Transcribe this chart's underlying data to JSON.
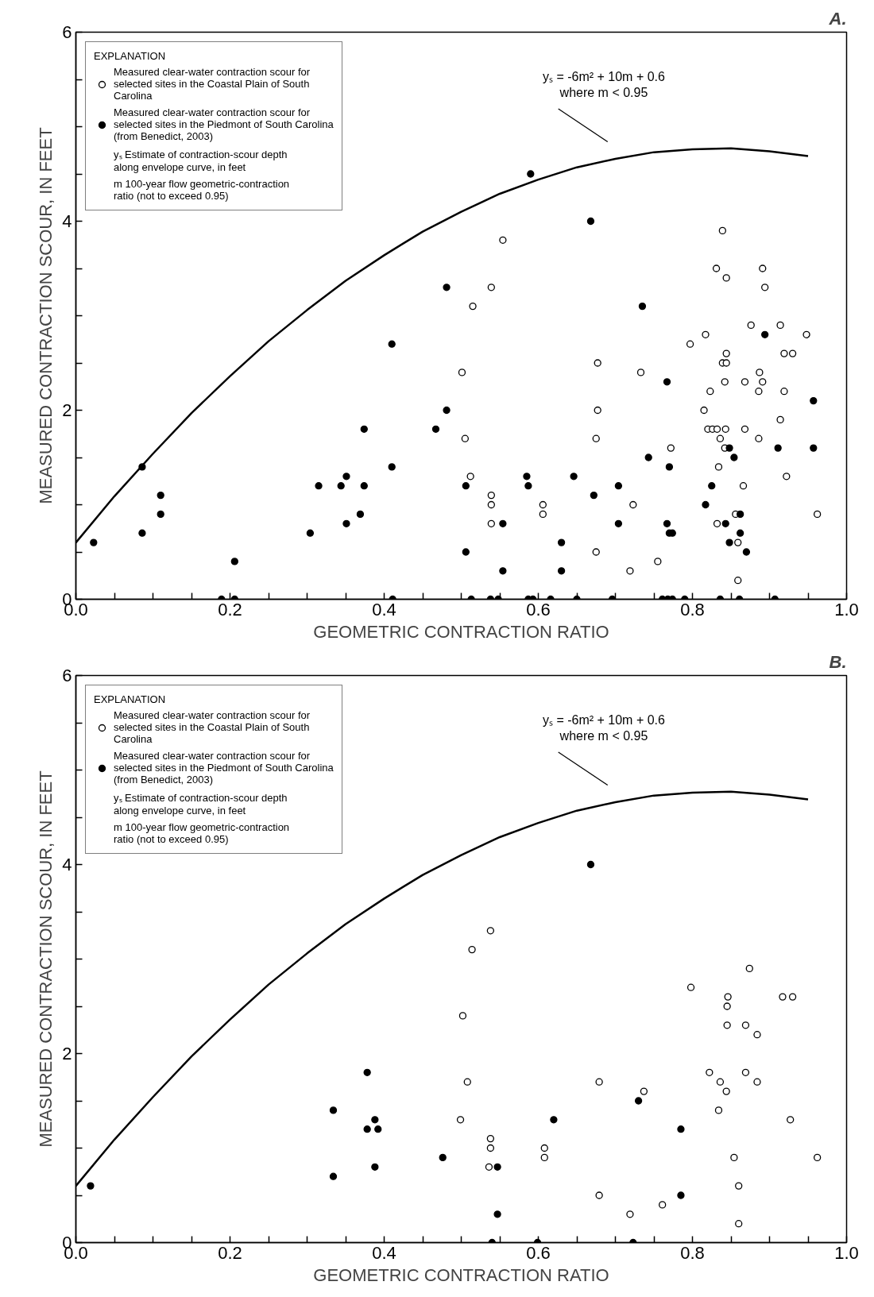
{
  "chart_data": [
    {
      "type": "scatter",
      "title": "A.",
      "xlabel": "GEOMETRIC CONTRACTION RATIO",
      "ylabel": "MEASURED CONTRACTION SCOUR, IN FEET",
      "legend_title": "EXPLANATION",
      "legend": "top left",
      "marker": "circle",
      "xlim": [
        0,
        1
      ],
      "ylim": [
        0,
        6
      ],
      "xticks": [
        {
          "value": 0,
          "label": "0.0"
        },
        {
          "value": 0.05,
          "label": null
        },
        {
          "value": 0.1,
          "label": null
        },
        {
          "value": 0.15,
          "label": null
        },
        0.2,
        {
          "value": 0.25,
          "label": null
        },
        {
          "value": 0.3,
          "label": null
        },
        {
          "value": 0.35,
          "label": null
        },
        0.4,
        {
          "value": 0.45,
          "label": null
        },
        {
          "value": 0.5,
          "label": null
        },
        {
          "value": 0.55,
          "label": null
        },
        0.6,
        {
          "value": 0.65,
          "label": null
        },
        {
          "value": 0.7,
          "label": null
        },
        {
          "value": 0.75,
          "label": null
        },
        0.8,
        {
          "value": 0.85,
          "label": null
        },
        {
          "value": 0.9,
          "label": null
        },
        {
          "value": 0.95,
          "label": null
        },
        {
          "value": 1,
          "label": "1.0"
        }
      ],
      "yticks": [
        0,
        {
          "value": 0.5,
          "label": null
        },
        {
          "value": 1,
          "label": null
        },
        {
          "value": 1.5,
          "label": null
        },
        2,
        {
          "value": 2.5,
          "label": null
        },
        {
          "value": 3,
          "label": null
        },
        {
          "value": 3.5,
          "label": null
        },
        4,
        {
          "value": 4.5,
          "label": null
        },
        {
          "value": 5,
          "label": null
        },
        {
          "value": 5.5,
          "label": null
        },
        6
      ],
      "annotations": [
        "yₛ Estimate of contraction-scour depth along envelope curve, in feet",
        "m 100-year flow geometric-contraction ratio (not to exceed 0.95)",
        "yₛ = -6m² + 10m + 0.6\nwhere m < 0.95"
      ],
      "series": [
        {
          "name": "Measured clear-water contraction scour for selected sites in the Coastal Plain of South Carolina",
          "color": "#ffffff",
          "x": [
            0.501,
            0.505,
            0.512,
            0.515,
            0.539,
            0.539,
            0.539,
            0.539,
            0.554,
            0.606,
            0.606,
            0.675,
            0.675,
            0.677,
            0.677,
            0.719,
            0.723,
            0.733,
            0.755,
            0.772,
            0.797,
            0.815,
            0.817,
            0.82,
            0.823,
            0.826,
            0.831,
            0.832,
            0.832,
            0.834,
            0.836,
            0.839,
            0.839,
            0.842,
            0.842,
            0.843,
            0.844,
            0.844,
            0.844,
            0.856,
            0.859,
            0.859,
            0.866,
            0.868,
            0.868,
            0.876,
            0.886,
            0.886,
            0.887,
            0.891,
            0.891,
            0.894,
            0.914,
            0.914,
            0.919,
            0.919,
            0.922,
            0.93,
            0.948,
            0.962
          ],
          "values": [
            2.4,
            1.7,
            1.3,
            3.1,
            3.3,
            1.1,
            1.0,
            0.8,
            3.8,
            1.0,
            0.9,
            1.7,
            0.5,
            2.5,
            2.0,
            0.3,
            1.0,
            2.4,
            0.4,
            1.6,
            2.7,
            2.0,
            2.8,
            1.8,
            2.2,
            1.8,
            3.5,
            1.8,
            0.8,
            1.4,
            1.7,
            3.9,
            2.5,
            2.3,
            1.6,
            1.8,
            3.4,
            2.6,
            2.5,
            0.9,
            0.6,
            0.2,
            1.2,
            2.3,
            1.8,
            2.9,
            2.2,
            1.7,
            2.4,
            3.5,
            2.3,
            3.3,
            2.9,
            1.9,
            2.6,
            2.2,
            1.3,
            2.6,
            2.8,
            0.9
          ]
        },
        {
          "name": "Measured clear-water contraction scour for selected sites in the Piedmont of South Carolina (from Benedict, 2003)",
          "color": "#000000",
          "x": [
            0.023,
            0.086,
            0.086,
            0.11,
            0.11,
            0.189,
            0.206,
            0.206,
            0.304,
            0.315,
            0.344,
            0.351,
            0.351,
            0.369,
            0.374,
            0.374,
            0.41,
            0.41,
            0.411,
            0.467,
            0.481,
            0.481,
            0.506,
            0.506,
            0.513,
            0.538,
            0.548,
            0.554,
            0.554,
            0.585,
            0.587,
            0.587,
            0.593,
            0.59,
            0.616,
            0.63,
            0.63,
            0.646,
            0.65,
            0.668,
            0.672,
            0.696,
            0.704,
            0.704,
            0.735,
            0.743,
            0.761,
            0.767,
            0.767,
            0.768,
            0.77,
            0.77,
            0.774,
            0.774,
            0.79,
            0.817,
            0.825,
            0.836,
            0.843,
            0.848,
            0.848,
            0.854,
            0.861,
            0.862,
            0.862,
            0.87,
            0.894,
            0.907,
            0.911,
            0.957,
            0.957
          ],
          "values": [
            0.6,
            1.4,
            0.7,
            1.1,
            0.9,
            0,
            0.4,
            0,
            0.7,
            1.2,
            1.2,
            1.3,
            0.8,
            0.9,
            1.8,
            1.2,
            2.7,
            1.4,
            0,
            1.8,
            3.3,
            2.0,
            1.2,
            0.5,
            0,
            0,
            0,
            0.8,
            0.3,
            1.3,
            1.2,
            0,
            0,
            4.5,
            0,
            0.6,
            0.3,
            1.3,
            0,
            4.0,
            1.1,
            0,
            1.2,
            0.8,
            3.1,
            1.5,
            0,
            2.3,
            0.8,
            0,
            1.4,
            0.7,
            0.7,
            0,
            0,
            1.0,
            1.2,
            0,
            0.8,
            1.6,
            0.6,
            1.5,
            0,
            0.9,
            0.7,
            0.5,
            2.8,
            0,
            1.6,
            2.1,
            1.6
          ]
        },
        {
          "type": "line",
          "color": "#000000",
          "marker": "none",
          "x": [
            0,
            0.05,
            0.1,
            0.15,
            0.2,
            0.25,
            0.3,
            0.35,
            0.4,
            0.45,
            0.5,
            0.55,
            0.6,
            0.65,
            0.7,
            0.75,
            0.8,
            0.85,
            0.9,
            0.95
          ],
          "values": [
            0.6,
            1.09,
            1.54,
            1.97,
            2.36,
            2.73,
            3.06,
            3.37,
            3.64,
            3.89,
            4.1,
            4.29,
            4.44,
            4.57,
            4.66,
            4.73,
            4.76,
            4.77,
            4.74,
            4.69
          ]
        }
      ]
    },
    {
      "type": "scatter",
      "title": "B.",
      "xlabel": "GEOMETRIC CONTRACTION RATIO",
      "ylabel": "MEASURED CONTRACTION SCOUR, IN FEET",
      "legend_title": "EXPLANATION",
      "legend": "top left",
      "marker": "circle",
      "xlim": [
        0,
        1
      ],
      "ylim": [
        0,
        6
      ],
      "xticks": [
        {
          "value": 0,
          "label": "0.0"
        },
        {
          "value": 0.05,
          "label": null
        },
        {
          "value": 0.1,
          "label": null
        },
        {
          "value": 0.15,
          "label": null
        },
        0.2,
        {
          "value": 0.25,
          "label": null
        },
        {
          "value": 0.3,
          "label": null
        },
        {
          "value": 0.35,
          "label": null
        },
        0.4,
        {
          "value": 0.45,
          "label": null
        },
        {
          "value": 0.5,
          "label": null
        },
        {
          "value": 0.55,
          "label": null
        },
        0.6,
        {
          "value": 0.65,
          "label": null
        },
        {
          "value": 0.7,
          "label": null
        },
        {
          "value": 0.75,
          "label": null
        },
        0.8,
        {
          "value": 0.85,
          "label": null
        },
        {
          "value": 0.9,
          "label": null
        },
        {
          "value": 0.95,
          "label": null
        },
        {
          "value": 1,
          "label": "1.0"
        }
      ],
      "yticks": [
        0,
        {
          "value": 0.5,
          "label": null
        },
        {
          "value": 1,
          "label": null
        },
        {
          "value": 1.5,
          "label": null
        },
        2,
        {
          "value": 2.5,
          "label": null
        },
        {
          "value": 3,
          "label": null
        },
        {
          "value": 3.5,
          "label": null
        },
        4,
        {
          "value": 4.5,
          "label": null
        },
        {
          "value": 5,
          "label": null
        },
        {
          "value": 5.5,
          "label": null
        },
        6
      ],
      "annotations": [
        "yₛ Estimate of contraction-scour depth along envelope curve, in feet",
        "m 100-year flow geometric-contraction ratio (not to exceed 0.95)",
        "yₛ = -6m² + 10m + 0.6\nwhere m < 0.95"
      ],
      "series": [
        {
          "name": "Measured clear-water contraction scour for selected sites in the Coastal Plain of South Carolina",
          "color": "#ffffff",
          "x": [
            0.499,
            0.502,
            0.508,
            0.514,
            0.536,
            0.538,
            0.538,
            0.538,
            0.608,
            0.608,
            0.679,
            0.679,
            0.719,
            0.737,
            0.761,
            0.798,
            0.822,
            0.834,
            0.836,
            0.844,
            0.845,
            0.845,
            0.846,
            0.854,
            0.86,
            0.86,
            0.869,
            0.869,
            0.874,
            0.884,
            0.884,
            0.917,
            0.927,
            0.93,
            0.962
          ],
          "values": [
            1.3,
            2.4,
            1.7,
            3.1,
            0.8,
            3.3,
            1.1,
            1.0,
            1.0,
            0.9,
            1.7,
            0.5,
            0.3,
            1.6,
            0.4,
            2.7,
            1.8,
            1.4,
            1.7,
            1.6,
            2.5,
            2.3,
            2.6,
            0.9,
            0.6,
            0.2,
            2.3,
            1.8,
            2.9,
            2.2,
            1.7,
            2.6,
            1.3,
            2.6,
            0.9
          ]
        },
        {
          "name": "Measured clear-water contraction scour for selected sites in the Piedmont of South Carolina (from Benedict, 2003)",
          "color": "#000000",
          "x": [
            0.019,
            0.334,
            0.334,
            0.378,
            0.378,
            0.388,
            0.388,
            0.392,
            0.476,
            0.54,
            0.547,
            0.547,
            0.599,
            0.62,
            0.668,
            0.723,
            0.73,
            0.785,
            0.785
          ],
          "values": [
            0.6,
            1.4,
            0.7,
            1.8,
            1.2,
            1.3,
            0.8,
            1.2,
            0.9,
            0,
            0.8,
            0.3,
            0,
            1.3,
            4.0,
            0,
            1.5,
            1.2,
            0.5
          ]
        },
        {
          "type": "line",
          "color": "#000000",
          "marker": "none",
          "x": [
            0,
            0.05,
            0.1,
            0.15,
            0.2,
            0.25,
            0.3,
            0.35,
            0.4,
            0.45,
            0.5,
            0.55,
            0.6,
            0.65,
            0.7,
            0.75,
            0.8,
            0.85,
            0.9,
            0.95
          ],
          "values": [
            0.6,
            1.09,
            1.54,
            1.97,
            2.36,
            2.73,
            3.06,
            3.37,
            3.64,
            3.89,
            4.1,
            4.29,
            4.44,
            4.57,
            4.66,
            4.73,
            4.76,
            4.77,
            4.74,
            4.69
          ]
        }
      ]
    }
  ]
}
